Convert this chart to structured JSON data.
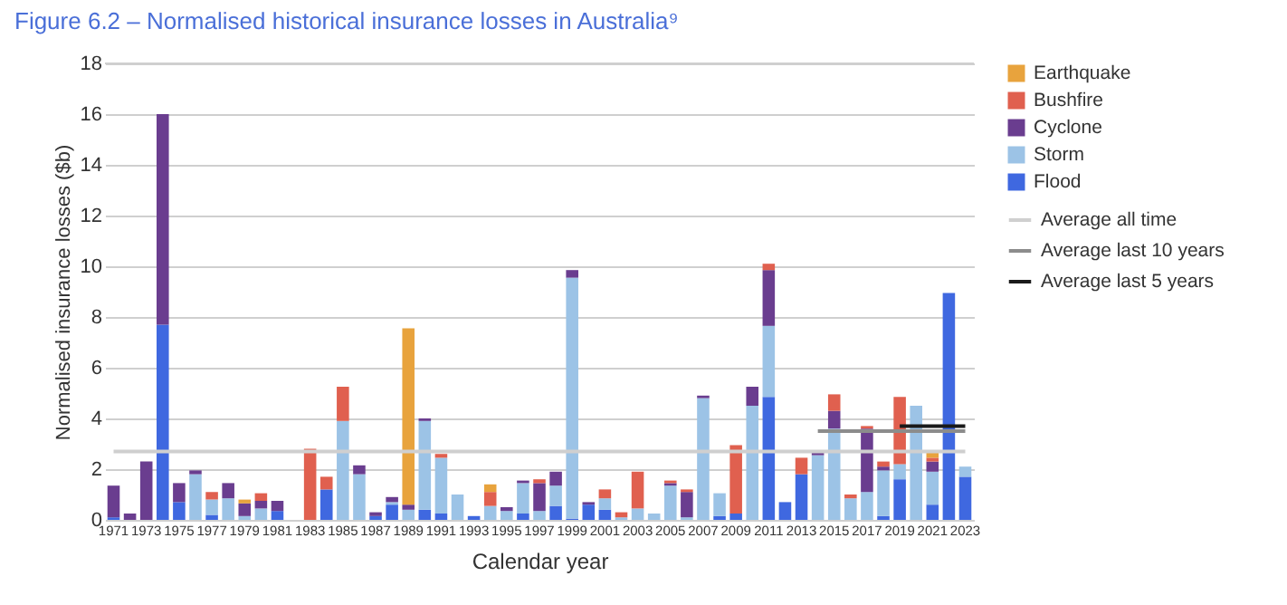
{
  "chart_data": {
    "type": "bar",
    "title": "Figure 6.2 – Normalised historical insurance losses in Australia⁹",
    "xlabel": "Calendar year",
    "ylabel": "Normalised insurance losses ($b)",
    "categories": [
      "1971",
      null,
      "1973",
      null,
      "1975",
      null,
      "1977",
      null,
      "1979",
      null,
      "1981",
      null,
      "1983",
      null,
      "1985",
      null,
      "1987",
      null,
      "1989",
      null,
      "1991",
      null,
      "1993",
      null,
      "1995",
      null,
      "1997",
      null,
      "1999",
      null,
      "2001",
      null,
      "2003",
      null,
      "2005",
      null,
      "2007",
      null,
      "2009",
      null,
      "2011",
      null,
      "2013",
      null,
      "2015",
      null,
      "2017",
      null,
      "2019",
      null,
      "2021",
      null,
      "2023"
    ],
    "stacked": true,
    "ylim": [
      0,
      18
    ],
    "yticks": [
      0,
      2,
      4,
      6,
      8,
      10,
      12,
      14,
      16,
      18
    ],
    "grid": "y",
    "legend": "right",
    "marker": "none",
    "series": [
      {
        "name": "Flood",
        "color": "#3f68e0",
        "values": [
          0.1,
          0,
          0,
          7.7,
          0.7,
          0,
          0.2,
          0,
          0,
          0,
          0.35,
          0,
          0,
          1.2,
          0,
          0,
          0.15,
          0.6,
          0,
          0.4,
          0.25,
          0,
          0.15,
          0,
          0,
          0.25,
          0,
          0.55,
          0.05,
          0.6,
          0.4,
          0,
          0,
          0,
          0,
          0,
          0,
          0.15,
          0.25,
          0,
          4.85,
          0.7,
          1.8,
          0,
          0,
          0,
          0,
          0.15,
          1.6,
          0,
          0.6,
          8.95,
          1.7
        ]
      },
      {
        "name": "Storm",
        "color": "#9cc3e6",
        "values": [
          0,
          0,
          0,
          0,
          0,
          1.8,
          0.6,
          0.85,
          0.15,
          0.45,
          0,
          0,
          0,
          0,
          3.9,
          1.8,
          0,
          0.1,
          0.4,
          3.5,
          2.2,
          1.0,
          0,
          0.55,
          0.35,
          1.2,
          0.35,
          0.8,
          9.5,
          0,
          0.45,
          0.1,
          0.45,
          0.25,
          1.35,
          0.1,
          4.8,
          0.9,
          0,
          4.5,
          2.8,
          0,
          0,
          2.55,
          3.6,
          0.85,
          1.1,
          1.8,
          0.6,
          4.5,
          1.3,
          0,
          0.4
        ]
      },
      {
        "name": "Cyclone",
        "color": "#6a3d8f",
        "values": [
          1.25,
          0.25,
          2.3,
          8.3,
          0.75,
          0.15,
          0,
          0.6,
          0.5,
          0.3,
          0.4,
          0,
          0,
          0,
          0,
          0.35,
          0.15,
          0.2,
          0.2,
          0.1,
          0,
          0,
          0,
          0,
          0.15,
          0.1,
          1.1,
          0.55,
          0.3,
          0.1,
          0,
          0,
          0,
          0,
          0.1,
          1.0,
          0.1,
          0,
          0,
          0.75,
          2.2,
          0,
          0,
          0.1,
          0.7,
          0,
          2.5,
          0.15,
          0,
          0,
          0.4,
          0,
          0
        ]
      },
      {
        "name": "Bushfire",
        "color": "#e0604f",
        "values": [
          0,
          0,
          0,
          0,
          0,
          0,
          0.3,
          0,
          0,
          0.3,
          0,
          0,
          2.8,
          0.5,
          1.35,
          0,
          0,
          0,
          0,
          0,
          0.15,
          0,
          0,
          0.55,
          0,
          0,
          0.15,
          0,
          0,
          0,
          0.35,
          0.2,
          1.45,
          0,
          0.1,
          0.1,
          0,
          0,
          2.7,
          0,
          0.25,
          0,
          0.65,
          null,
          0.65,
          0.15,
          0.1,
          0.2,
          2.65,
          0,
          0.15,
          0,
          0
        ]
      },
      {
        "name": "Earthquake",
        "color": "#e8a33d",
        "values": [
          0,
          0,
          0,
          0,
          0,
          0,
          0,
          0,
          0.15,
          0,
          0,
          0,
          0,
          0,
          0,
          0,
          0,
          0,
          6.95,
          0,
          0,
          0,
          0,
          0.3,
          0,
          0,
          0,
          0,
          0,
          0,
          0,
          0,
          0,
          0,
          0,
          0,
          0,
          0,
          0,
          0,
          0,
          0,
          0,
          0,
          0,
          0,
          0,
          0,
          0,
          0,
          0.2,
          0,
          0
        ]
      },
      {
        "name": "Average all time",
        "type": "line",
        "color": "#cfcfcf",
        "values": [
          2.7,
          2.7,
          2.7,
          2.7,
          2.7,
          2.7,
          2.7,
          2.7,
          2.7,
          2.7,
          2.7,
          2.7,
          2.7,
          2.7,
          2.7,
          2.7,
          2.7,
          2.7,
          2.7,
          2.7,
          2.7,
          2.7,
          2.7,
          2.7,
          2.7,
          2.7,
          2.7,
          2.7,
          2.7,
          2.7,
          2.7,
          2.7,
          2.7,
          2.7,
          2.7,
          2.7,
          2.7,
          2.7,
          2.7,
          2.7,
          2.7,
          2.7,
          2.7,
          2.7,
          2.7,
          2.7,
          2.7,
          2.7,
          2.7,
          2.7,
          2.7,
          2.7,
          2.7
        ]
      },
      {
        "name": "Average last 10 years",
        "type": "line",
        "color": "#8c8c8c",
        "values": [
          null,
          null,
          null,
          null,
          null,
          null,
          null,
          null,
          null,
          null,
          null,
          null,
          null,
          null,
          null,
          null,
          null,
          null,
          null,
          null,
          null,
          null,
          null,
          null,
          null,
          null,
          null,
          null,
          null,
          null,
          null,
          null,
          null,
          null,
          null,
          null,
          null,
          null,
          null,
          null,
          null,
          null,
          null,
          3.5,
          3.5,
          3.5,
          3.5,
          3.5,
          3.5,
          3.5,
          3.5,
          3.5,
          3.5
        ]
      },
      {
        "name": "Average last 5 years",
        "type": "line",
        "color": "#1a1a1a",
        "values": [
          null,
          null,
          null,
          null,
          null,
          null,
          null,
          null,
          null,
          null,
          null,
          null,
          null,
          null,
          null,
          null,
          null,
          null,
          null,
          null,
          null,
          null,
          null,
          null,
          null,
          null,
          null,
          null,
          null,
          null,
          null,
          null,
          null,
          null,
          null,
          null,
          null,
          null,
          null,
          null,
          null,
          null,
          null,
          null,
          null,
          null,
          null,
          null,
          3.7,
          3.7,
          3.7,
          3.7,
          3.7
        ]
      }
    ]
  }
}
